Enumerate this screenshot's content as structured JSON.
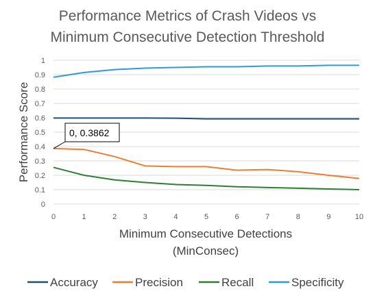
{
  "chart_data": {
    "type": "line",
    "title_lines": [
      "Performance Metrics of Crash Videos vs",
      "Minimum Consecutive Detection Threshold"
    ],
    "xlabel_lines": [
      "Minimum Consecutive Detections",
      "(MinConsec)"
    ],
    "ylabel": "Performance Score",
    "x": [
      0,
      1,
      2,
      3,
      4,
      5,
      6,
      7,
      8,
      9,
      10
    ],
    "xlim": [
      0,
      10
    ],
    "ylim": [
      0,
      1
    ],
    "yticks": [
      "0",
      "0.1",
      "0.2",
      "0.3",
      "0.4",
      "0.5",
      "0.6",
      "0.7",
      "0.8",
      "0.9",
      "1"
    ],
    "xticks": [
      "0",
      "1",
      "2",
      "3",
      "4",
      "5",
      "6",
      "7",
      "8",
      "9",
      "10"
    ],
    "grid": "horizontal",
    "legend_position": "bottom",
    "series": [
      {
        "name": "Accuracy",
        "color": "#1f4e79",
        "values": [
          0.598,
          0.598,
          0.598,
          0.598,
          0.597,
          0.592,
          0.592,
          0.592,
          0.592,
          0.592,
          0.592
        ]
      },
      {
        "name": "Precision",
        "color": "#ed7d31",
        "values": [
          0.3862,
          0.38,
          0.33,
          0.265,
          0.26,
          0.26,
          0.235,
          0.24,
          0.225,
          0.2,
          0.178
        ]
      },
      {
        "name": "Recall",
        "color": "#2e7d32",
        "values": [
          0.255,
          0.2,
          0.168,
          0.15,
          0.136,
          0.13,
          0.12,
          0.115,
          0.11,
          0.105,
          0.1
        ]
      },
      {
        "name": "Specificity",
        "color": "#2e9bd6",
        "values": [
          0.882,
          0.915,
          0.935,
          0.945,
          0.95,
          0.955,
          0.955,
          0.96,
          0.96,
          0.965,
          0.965
        ]
      }
    ],
    "annotation": {
      "text": "0, 0.3862",
      "x": 0,
      "y": 0.3862
    }
  }
}
